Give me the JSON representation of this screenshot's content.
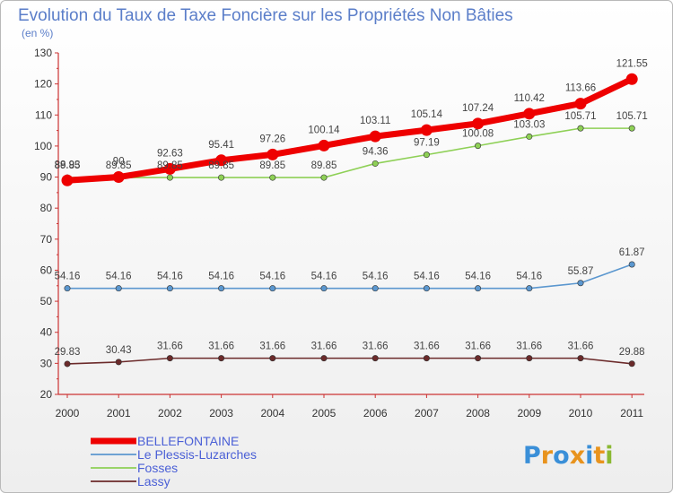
{
  "colors": {
    "title": "#5b7ec9",
    "BELLEFONTAINE": "#ee0000",
    "Le Plessis-Luzarches": "#5b97cf",
    "Fosses": "#8ed056",
    "Lassy": "#6b2a2a"
  },
  "brand": {
    "name": "Proxiti",
    "letters": [
      "P",
      "r",
      "o",
      "x",
      "i",
      "t",
      "i"
    ],
    "letter_colors": [
      "#3a8fd8",
      "#e8931d",
      "#3a8fd8",
      "#e8931d",
      "#3a8fd8",
      "#e8931d",
      "#8ab832"
    ]
  },
  "chart_data": {
    "type": "line",
    "title": "Evolution du Taux de Taxe Foncière sur les Propriétés Non Bâties",
    "ylabel": "(en %)",
    "xlabel": "",
    "categories": [
      "2000",
      "2001",
      "2002",
      "2003",
      "2004",
      "2005",
      "2006",
      "2007",
      "2008",
      "2009",
      "2010",
      "2011"
    ],
    "ylim": [
      20,
      130
    ],
    "yticks": [
      20,
      30,
      40,
      50,
      60,
      70,
      80,
      90,
      100,
      110,
      120,
      130
    ],
    "grid": false,
    "legend_position": "bottom-left",
    "series": [
      {
        "name": "BELLEFONTAINE",
        "values": [
          88.93,
          90,
          92.63,
          95.41,
          97.26,
          100.14,
          103.11,
          105.14,
          107.24,
          110.42,
          113.66,
          121.55
        ],
        "labels": [
          "88.93",
          "90",
          "92.63",
          "95.41",
          "97.26",
          "100.14",
          "103.11",
          "105.14",
          "107.24",
          "110.42",
          "113.66",
          "121.55"
        ]
      },
      {
        "name": "Le Plessis-Luzarches",
        "values": [
          54.16,
          54.16,
          54.16,
          54.16,
          54.16,
          54.16,
          54.16,
          54.16,
          54.16,
          54.16,
          55.87,
          61.87
        ],
        "labels": [
          "54.16",
          "54.16",
          "54.16",
          "54.16",
          "54.16",
          "54.16",
          "54.16",
          "54.16",
          "54.16",
          "54.16",
          "55.87",
          "61.87"
        ]
      },
      {
        "name": "Fosses",
        "values": [
          89.85,
          89.85,
          89.85,
          89.85,
          89.85,
          89.85,
          94.36,
          97.19,
          100.08,
          103.03,
          105.71,
          105.71
        ],
        "labels": [
          "89.85",
          "89.85",
          "89.85",
          "89.85",
          "89.85",
          "89.85",
          "94.36",
          "97.19",
          "100.08",
          "103.03",
          "105.71",
          "105.71"
        ]
      },
      {
        "name": "Lassy",
        "values": [
          29.83,
          30.43,
          31.66,
          31.66,
          31.66,
          31.66,
          31.66,
          31.66,
          31.66,
          31.66,
          31.66,
          29.88
        ],
        "labels": [
          "29.83",
          "30.43",
          "31.66",
          "31.66",
          "31.66",
          "31.66",
          "31.66",
          "31.66",
          "31.66",
          "31.66",
          "31.66",
          "29.88"
        ]
      }
    ]
  }
}
